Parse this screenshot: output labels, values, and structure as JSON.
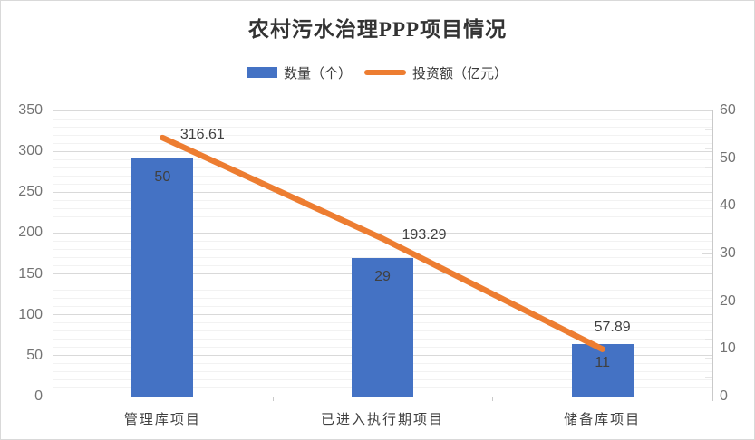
{
  "chart_data": {
    "type": "bar+line",
    "title": "农村污水治理PPP项目情况",
    "categories": [
      "管理库项目",
      "已进入执行期项目",
      "储备库项目"
    ],
    "series": [
      {
        "name": "数量（个）",
        "type": "bar",
        "axis": "right",
        "color": "#4472C4",
        "values": [
          50,
          29,
          11
        ],
        "labels": [
          "50",
          "29",
          "11"
        ]
      },
      {
        "name": "投资额（亿元）",
        "type": "line",
        "axis": "left",
        "color": "#ED7D31",
        "values": [
          316.61,
          193.29,
          57.89
        ],
        "labels": [
          "316.61",
          "193.29",
          "57.89"
        ]
      }
    ],
    "left_axis": {
      "min": 0,
      "max": 350,
      "major_step": 50,
      "minor_step": 10,
      "ticks": [
        "0",
        "50",
        "100",
        "150",
        "200",
        "250",
        "300",
        "350"
      ]
    },
    "right_axis": {
      "min": 0,
      "max": 60,
      "major_step": 10,
      "minor_step": 2,
      "ticks": [
        "0",
        "10",
        "20",
        "30",
        "40",
        "50",
        "60"
      ]
    },
    "grid": {
      "horizontal_major": true,
      "horizontal_minor": true,
      "vertical": false
    },
    "legend_position": "top"
  },
  "colors": {
    "bar_fill": "#4472C4",
    "line_stroke": "#ED7D31",
    "grid_major": "#D9D9D9",
    "grid_minor": "#F2F2F2",
    "axis_line": "#C9C9C9",
    "axis_text": "#737373",
    "data_label_text": "#404040",
    "title_text": "#333333",
    "background": "#FFFFFF"
  }
}
